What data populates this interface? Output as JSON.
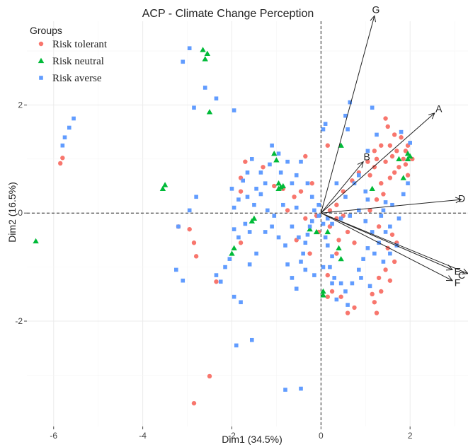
{
  "chart_data": {
    "type": "scatter",
    "title": "ACP - Climate Change Perception",
    "xlabel": "Dim1 (34.5%)",
    "ylabel": "Dim2 (16.5%)",
    "xlim": [
      -6.6,
      3.3
    ],
    "ylim": [
      -3.95,
      3.55
    ],
    "x_ticks": [
      -6,
      -4,
      -2,
      0,
      2
    ],
    "y_ticks": [
      -2,
      0,
      2
    ],
    "grid": true,
    "legend": {
      "title": "Groups",
      "placement": "top-left",
      "entries": [
        {
          "label": "Risk tolerant",
          "color": "#f8766d",
          "shape": "circle"
        },
        {
          "label": "Risk neutral",
          "color": "#00ba38",
          "shape": "triangle"
        },
        {
          "label": "Risk averse",
          "color": "#619cff",
          "shape": "square"
        }
      ]
    },
    "vectors": [
      {
        "label": "G",
        "x": 1.2,
        "y": 3.65
      },
      {
        "label": "A",
        "x": 2.55,
        "y": 1.85
      },
      {
        "label": "B",
        "x": 0.95,
        "y": 0.95
      },
      {
        "label": "D",
        "x": 3.15,
        "y": 0.25
      },
      {
        "label": "E",
        "x": 2.95,
        "y": -1.05
      },
      {
        "label": "F",
        "x": 2.95,
        "y": -1.25
      },
      {
        "label": "C",
        "x": 3.3,
        "y": -1.12
      }
    ],
    "series": [
      {
        "name": "Risk tolerant",
        "color": "#f8766d",
        "shape": "circle",
        "points": [
          [
            -5.85,
            0.92
          ],
          [
            -5.8,
            1.02
          ],
          [
            -2.85,
            -3.52
          ],
          [
            -2.5,
            -3.02
          ],
          [
            -2.35,
            -1.27
          ],
          [
            -2.95,
            -0.3
          ],
          [
            -2.85,
            -0.55
          ],
          [
            -2.8,
            -0.8
          ],
          [
            -3.2,
            -0.25
          ],
          [
            -1.8,
            -0.55
          ],
          [
            -1.8,
            0.4
          ],
          [
            -1.8,
            0.65
          ],
          [
            -1.7,
            0.95
          ],
          [
            -1.3,
            0.85
          ],
          [
            -1.05,
            0.5
          ],
          [
            -0.85,
            0.45
          ],
          [
            -0.6,
            0.3
          ],
          [
            -0.45,
            0.4
          ],
          [
            -0.2,
            0.55
          ],
          [
            -0.75,
            0.05
          ],
          [
            -0.35,
            -0.1
          ],
          [
            -0.1,
            -0.05
          ],
          [
            -0.05,
            -0.35
          ],
          [
            0.2,
            -0.25
          ],
          [
            0.4,
            -0.5
          ],
          [
            0.35,
            -0.75
          ],
          [
            0.6,
            -0.35
          ],
          [
            0.75,
            -0.55
          ],
          [
            0.15,
            -1.15
          ],
          [
            0.25,
            -1.45
          ],
          [
            0.45,
            -1.55
          ],
          [
            0.15,
            -1.55
          ],
          [
            0.6,
            -1.85
          ],
          [
            0.75,
            -1.75
          ],
          [
            1.15,
            -1.5
          ],
          [
            1.2,
            -1.65
          ],
          [
            1.25,
            -1.85
          ],
          [
            1.35,
            -1.45
          ],
          [
            1.3,
            -1.2
          ],
          [
            1.45,
            -1.05
          ],
          [
            1.55,
            -1.25
          ],
          [
            1.5,
            -0.65
          ],
          [
            1.6,
            -0.4
          ],
          [
            1.3,
            -0.25
          ],
          [
            1.1,
            0.05
          ],
          [
            1.25,
            0.25
          ],
          [
            1.4,
            0.35
          ],
          [
            1.35,
            0.55
          ],
          [
            1.55,
            0.65
          ],
          [
            1.65,
            0.75
          ],
          [
            1.75,
            0.85
          ],
          [
            1.9,
            0.9
          ],
          [
            1.85,
            1.0
          ],
          [
            1.6,
            1.05
          ],
          [
            1.45,
            0.95
          ],
          [
            1.2,
            0.85
          ],
          [
            1.1,
            0.7
          ],
          [
            1.25,
            1.0
          ],
          [
            1.55,
            1.25
          ],
          [
            1.7,
            1.15
          ],
          [
            1.9,
            1.15
          ],
          [
            1.95,
            1.25
          ],
          [
            1.8,
            1.4
          ],
          [
            1.65,
            1.45
          ],
          [
            1.5,
            1.6
          ],
          [
            1.45,
            1.75
          ],
          [
            1.35,
            1.25
          ],
          [
            1.2,
            1.15
          ],
          [
            1.05,
            0.95
          ],
          [
            0.85,
            0.75
          ],
          [
            0.7,
            0.6
          ],
          [
            0.5,
            0.4
          ],
          [
            0.35,
            0.15
          ],
          [
            0.2,
            0.05
          ],
          [
            0.5,
            -0.05
          ],
          [
            0.35,
            -0.1
          ],
          [
            1.7,
            -0.55
          ],
          [
            1.65,
            -0.9
          ],
          [
            1.95,
            0.7
          ],
          [
            2.05,
            1.0
          ],
          [
            -0.35,
            1.05
          ],
          [
            0.15,
            1.25
          ],
          [
            -0.25,
            -0.75
          ],
          [
            -0.55,
            -0.5
          ]
        ]
      },
      {
        "name": "Risk neutral",
        "color": "#00ba38",
        "shape": "triangle",
        "points": [
          [
            -6.4,
            -0.52
          ],
          [
            -3.5,
            0.52
          ],
          [
            -3.55,
            0.45
          ],
          [
            -2.65,
            3.02
          ],
          [
            -2.55,
            2.95
          ],
          [
            -2.6,
            2.85
          ],
          [
            -2.5,
            1.87
          ],
          [
            -2.0,
            -0.75
          ],
          [
            -1.95,
            -0.65
          ],
          [
            -1.5,
            -0.1
          ],
          [
            -1.55,
            -0.15
          ],
          [
            -1.05,
            1.1
          ],
          [
            -1.0,
            0.98
          ],
          [
            -0.95,
            0.55
          ],
          [
            -0.9,
            0.48
          ],
          [
            -0.85,
            0.5
          ],
          [
            -0.95,
            0.45
          ],
          [
            -0.25,
            -0.3
          ],
          [
            -0.1,
            -0.35
          ],
          [
            0.15,
            -0.35
          ],
          [
            0.45,
            -0.85
          ],
          [
            0.4,
            -0.65
          ],
          [
            0.05,
            -1.45
          ],
          [
            0.05,
            -1.52
          ],
          [
            0.45,
            1.25
          ],
          [
            1.15,
            0.45
          ],
          [
            1.75,
            1.0
          ],
          [
            1.85,
            0.65
          ],
          [
            1.95,
            1.0
          ],
          [
            2.0,
            1.05
          ],
          [
            1.95,
            1.1
          ]
        ]
      },
      {
        "name": "Risk averse",
        "color": "#619cff",
        "shape": "square",
        "points": [
          [
            -5.55,
            1.75
          ],
          [
            -5.65,
            1.58
          ],
          [
            -5.75,
            1.4
          ],
          [
            -5.8,
            1.25
          ],
          [
            -2.95,
            3.05
          ],
          [
            -3.1,
            2.8
          ],
          [
            -2.6,
            2.32
          ],
          [
            -2.85,
            1.95
          ],
          [
            -2.35,
            2.12
          ],
          [
            -1.95,
            1.9
          ],
          [
            -2.8,
            0.3
          ],
          [
            -2.95,
            0.05
          ],
          [
            -3.2,
            -0.25
          ],
          [
            -3.25,
            -1.05
          ],
          [
            -3.1,
            -1.25
          ],
          [
            -2.35,
            -1.15
          ],
          [
            -2.25,
            -1.27
          ],
          [
            -1.95,
            -1.55
          ],
          [
            -1.8,
            -1.65
          ],
          [
            -1.55,
            -2.35
          ],
          [
            -1.9,
            -2.45
          ],
          [
            -0.8,
            -3.27
          ],
          [
            -0.45,
            -3.25
          ],
          [
            -1.95,
            -0.3
          ],
          [
            -1.85,
            -0.45
          ],
          [
            -1.7,
            -0.2
          ],
          [
            -1.6,
            -0.35
          ],
          [
            -1.95,
            0.1
          ],
          [
            -1.85,
            0.25
          ],
          [
            -1.65,
            0.3
          ],
          [
            -1.5,
            0.15
          ],
          [
            -1.35,
            0.35
          ],
          [
            -1.2,
            0.05
          ],
          [
            -1.1,
            -0.25
          ],
          [
            -0.95,
            -0.45
          ],
          [
            -0.8,
            -0.6
          ],
          [
            -0.75,
            -0.95
          ],
          [
            -0.65,
            -1.2
          ],
          [
            -0.55,
            -1.4
          ],
          [
            -0.45,
            -0.9
          ],
          [
            -0.4,
            -0.75
          ],
          [
            -0.35,
            -0.55
          ],
          [
            -0.3,
            -0.4
          ],
          [
            -0.2,
            -0.15
          ],
          [
            -0.15,
            0.05
          ],
          [
            -0.05,
            -0.05
          ],
          [
            0.05,
            -0.2
          ],
          [
            0.1,
            -0.45
          ],
          [
            0.15,
            -0.6
          ],
          [
            0.25,
            -0.8
          ],
          [
            0.2,
            -1.0
          ],
          [
            0.3,
            -1.2
          ],
          [
            0.45,
            -1.3
          ],
          [
            0.55,
            -1.45
          ],
          [
            0.7,
            -1.3
          ],
          [
            0.85,
            -1.05
          ],
          [
            0.95,
            -0.85
          ],
          [
            1.05,
            -0.65
          ],
          [
            1.2,
            -0.75
          ],
          [
            1.4,
            -0.9
          ],
          [
            1.45,
            -0.35
          ],
          [
            1.55,
            -0.25
          ],
          [
            1.75,
            -0.1
          ],
          [
            -1.55,
            1.0
          ],
          [
            -1.35,
            0.75
          ],
          [
            -1.25,
            0.55
          ],
          [
            -1.15,
            0.9
          ],
          [
            -1.1,
            1.25
          ],
          [
            -0.95,
            1.1
          ],
          [
            -0.75,
            0.95
          ],
          [
            -0.55,
            0.7
          ],
          [
            -0.45,
            0.95
          ],
          [
            -0.3,
            0.55
          ],
          [
            -0.2,
            0.3
          ],
          [
            0.05,
            1.55
          ],
          [
            0.1,
            1.65
          ],
          [
            0.35,
            0.55
          ],
          [
            0.55,
            0.3
          ],
          [
            0.75,
            0.55
          ],
          [
            0.85,
            0.7
          ],
          [
            1.0,
            0.4
          ],
          [
            1.05,
            0.25
          ],
          [
            0.65,
            2.05
          ],
          [
            0.55,
            1.8
          ],
          [
            0.6,
            1.55
          ],
          [
            1.15,
            1.95
          ],
          [
            1.25,
            1.45
          ],
          [
            1.05,
            1.15
          ],
          [
            1.4,
            0.05
          ],
          [
            1.6,
            0.15
          ],
          [
            1.85,
            0.35
          ],
          [
            1.95,
            0.55
          ],
          [
            2.0,
            1.3
          ],
          [
            1.8,
            1.5
          ],
          [
            1.7,
            -0.6
          ],
          [
            1.55,
            -0.75
          ],
          [
            1.1,
            -1.35
          ],
          [
            0.9,
            -1.2
          ],
          [
            0.6,
            -1.7
          ],
          [
            0.35,
            -1.6
          ],
          [
            0.25,
            -1.3
          ],
          [
            0.05,
            -1.0
          ],
          [
            -0.15,
            -1.15
          ],
          [
            -0.35,
            -1.05
          ],
          [
            -0.5,
            -0.45
          ],
          [
            -0.65,
            -0.25
          ],
          [
            -0.55,
            0.1
          ],
          [
            -0.85,
            0.15
          ],
          [
            -1.05,
            -0.05
          ],
          [
            -1.25,
            -0.35
          ],
          [
            -1.45,
            -0.75
          ],
          [
            -1.6,
            -0.95
          ],
          [
            -2.05,
            -0.85
          ],
          [
            -2.15,
            -1.0
          ],
          [
            -1.75,
            0.6
          ],
          [
            -1.65,
            0.75
          ],
          [
            -2.0,
            0.45
          ],
          [
            -1.45,
            0.45
          ],
          [
            -0.9,
            0.75
          ],
          [
            -0.65,
            0.55
          ],
          [
            0.15,
            -0.1
          ],
          [
            0.25,
            -0.2
          ],
          [
            0.45,
            -0.1
          ],
          [
            0.65,
            -0.05
          ],
          [
            0.85,
            0.05
          ],
          [
            1.0,
            -0.15
          ],
          [
            1.15,
            -0.35
          ],
          [
            1.3,
            -0.55
          ],
          [
            1.35,
            -0.05
          ],
          [
            1.45,
            0.2
          ],
          [
            -0.05,
            0.15
          ],
          [
            -0.25,
            -0.25
          ]
        ]
      }
    ]
  }
}
